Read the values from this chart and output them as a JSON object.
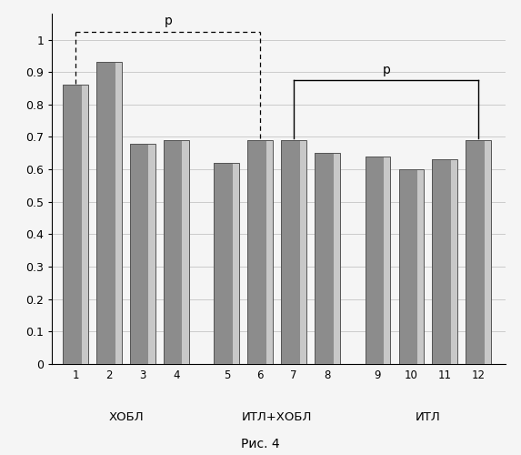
{
  "values": [
    0.86,
    0.93,
    0.68,
    0.69,
    0.62,
    0.69,
    0.69,
    0.65,
    0.64,
    0.6,
    0.63,
    0.69
  ],
  "bar_labels": [
    "1",
    "2",
    "3",
    "4",
    "5",
    "6",
    "7",
    "8",
    "9",
    "10",
    "11",
    "12"
  ],
  "group_labels": [
    "ХОБЛ",
    "ИТЛ+ХОБЛ",
    "ИТЛ"
  ],
  "ylabel_ticks": [
    0,
    0.1,
    0.2,
    0.3,
    0.4,
    0.5,
    0.6,
    0.7,
    0.8,
    0.9,
    1
  ],
  "ylim": [
    0,
    1.08
  ],
  "caption": "Рис. 4",
  "background_color": "#f5f5f5",
  "bar_dark": "#8c8c8c",
  "bar_light": "#c8c8c8",
  "bar_edge": "#555555",
  "grid_color": "#bbbbbb"
}
